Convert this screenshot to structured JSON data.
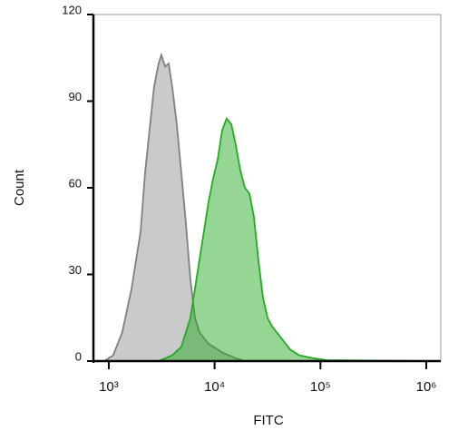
{
  "chart_data": {
    "type": "area",
    "xlabel": "FITC",
    "ylabel": "Count",
    "xscale": "log",
    "xlim": [
      716,
      1370000
    ],
    "ylim": [
      0,
      120
    ],
    "xticks": [
      {
        "value": 1000,
        "label": "10³"
      },
      {
        "value": 10000,
        "label": "10⁴"
      },
      {
        "value": 100000,
        "label": "10⁵"
      },
      {
        "value": 1000000,
        "label": "10⁶"
      }
    ],
    "yticks": [
      0,
      30,
      60,
      90,
      120
    ],
    "series": [
      {
        "color": "#808080",
        "x": [
          906,
          1100,
          1340,
          1640,
          2000,
          2200,
          2430,
          2680,
          2960,
          3140,
          3400,
          3680,
          3980,
          4390,
          4850,
          5350,
          5910,
          6520,
          7190,
          8760,
          11800,
          15800,
          19300
        ],
        "values": [
          0,
          2,
          10,
          25,
          45,
          65,
          80,
          95,
          103,
          106,
          102,
          103,
          95,
          82,
          65,
          48,
          28,
          15,
          10,
          6,
          3,
          1,
          0
        ]
      },
      {
        "color": "#22aa22",
        "x": [
          2960,
          3980,
          4850,
          5910,
          7190,
          8760,
          9670,
          10700,
          11800,
          13000,
          14400,
          15800,
          17500,
          19300,
          21300,
          23500,
          25900,
          28600,
          31600,
          34900,
          42500,
          51700,
          63000,
          84700,
          114000,
          251000,
          1370000
        ],
        "values": [
          0,
          2,
          5,
          15,
          35,
          55,
          63,
          70,
          80,
          84,
          82,
          75,
          66,
          60,
          58,
          50,
          35,
          22,
          15,
          12,
          8,
          4,
          2,
          1,
          0.3,
          0.2,
          0
        ]
      }
    ]
  }
}
